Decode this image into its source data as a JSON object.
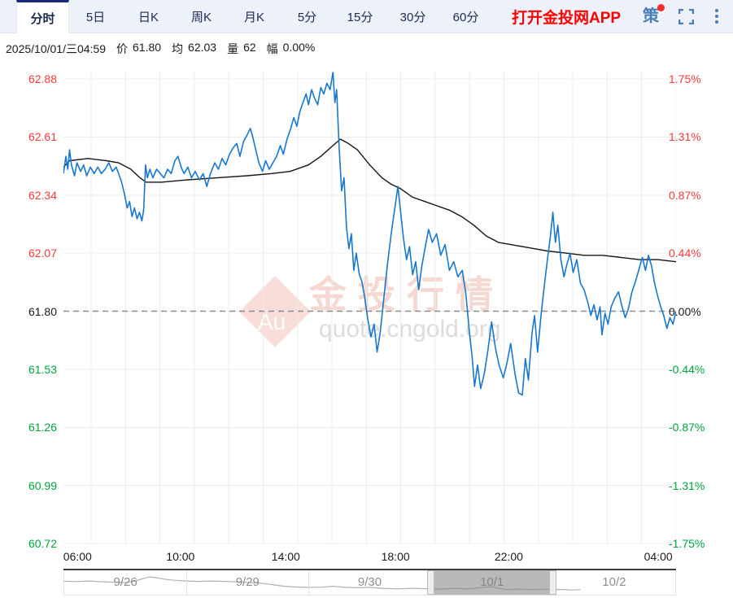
{
  "tab_bar": {
    "tabs": [
      "分时",
      "5日",
      "日K",
      "周K",
      "月K",
      "5分",
      "15分",
      "30分",
      "60分"
    ],
    "active_tab": "分时",
    "app_link": "打开金投网APP",
    "strategy_icon_char": "策"
  },
  "info_line": {
    "datetime": "2025/10/01/三04:59",
    "price_label": "价",
    "price": "61.80",
    "avg_label": "均",
    "avg": "62.03",
    "volume_label": "量",
    "volume": "62",
    "range_label": "幅",
    "range": "0.00%"
  },
  "watermark": {
    "logo_text": "Au",
    "brand_text": "金投行情",
    "site_text": "quote.cngold.org"
  },
  "colors": {
    "up": "#f83a3a",
    "down": "#00a43e",
    "flat": "#1a1a1a",
    "price_line": "#1778cf",
    "avg_line": "#151515",
    "grid": "#ececec",
    "dashed": "#8c8c8c",
    "app_link": "#fe0000",
    "icon_blue": "#4a7ebb",
    "badge_red": "#f32b2b",
    "watermark_pink": "#f8ddd8",
    "watermark_text": "#f5d8d2",
    "nav_line": "#b0b0b0"
  },
  "chart_data": {
    "type": "line",
    "title": "",
    "x_axis": {
      "labels": [
        "06:00",
        "10:00",
        "14:00",
        "18:00",
        "22:00",
        "04:00"
      ],
      "positions": [
        0.023,
        0.191,
        0.363,
        0.542,
        0.727,
        0.971
      ]
    },
    "y_axis_left": {
      "labels": [
        "62.88",
        "62.61",
        "62.34",
        "62.07",
        "61.80",
        "61.53",
        "61.26",
        "60.99",
        "60.72"
      ],
      "tones": [
        "up",
        "up",
        "up",
        "up",
        "flat",
        "down",
        "down",
        "down",
        "down"
      ]
    },
    "y_axis_right": {
      "labels": [
        "1.75%",
        "1.31%",
        "0.87%",
        "0.44%",
        "0.00%",
        "-0.44%",
        "-0.87%",
        "-1.31%",
        "-1.75%"
      ],
      "tones": [
        "up",
        "up",
        "up",
        "up",
        "flat",
        "down",
        "down",
        "down",
        "down"
      ]
    },
    "y_min": 60.72,
    "y_max": 62.88,
    "prev_close": 61.8,
    "series": [
      {
        "name": "price",
        "color_key": "price_line",
        "points": [
          [
            0.0,
            62.44
          ],
          [
            0.004,
            62.52
          ],
          [
            0.007,
            62.46
          ],
          [
            0.01,
            62.55
          ],
          [
            0.013,
            62.48
          ],
          [
            0.018,
            62.43
          ],
          [
            0.022,
            62.49
          ],
          [
            0.028,
            62.45
          ],
          [
            0.033,
            62.48
          ],
          [
            0.038,
            62.43
          ],
          [
            0.044,
            62.47
          ],
          [
            0.05,
            62.44
          ],
          [
            0.056,
            62.47
          ],
          [
            0.062,
            62.44
          ],
          [
            0.068,
            62.46
          ],
          [
            0.074,
            62.49
          ],
          [
            0.08,
            62.45
          ],
          [
            0.086,
            62.47
          ],
          [
            0.09,
            62.44
          ],
          [
            0.095,
            62.4
          ],
          [
            0.1,
            62.34
          ],
          [
            0.104,
            62.28
          ],
          [
            0.108,
            62.31
          ],
          [
            0.112,
            62.24
          ],
          [
            0.116,
            62.28
          ],
          [
            0.12,
            62.23
          ],
          [
            0.124,
            62.26
          ],
          [
            0.128,
            62.22
          ],
          [
            0.131,
            62.27
          ],
          [
            0.134,
            62.48
          ],
          [
            0.137,
            62.42
          ],
          [
            0.141,
            62.46
          ],
          [
            0.146,
            62.42
          ],
          [
            0.152,
            62.46
          ],
          [
            0.158,
            62.44
          ],
          [
            0.164,
            62.42
          ],
          [
            0.17,
            62.46
          ],
          [
            0.176,
            62.44
          ],
          [
            0.182,
            62.5
          ],
          [
            0.187,
            62.52
          ],
          [
            0.192,
            62.47
          ],
          [
            0.197,
            62.44
          ],
          [
            0.203,
            62.47
          ],
          [
            0.209,
            62.42
          ],
          [
            0.215,
            62.45
          ],
          [
            0.222,
            62.41
          ],
          [
            0.228,
            62.44
          ],
          [
            0.234,
            62.38
          ],
          [
            0.24,
            62.44
          ],
          [
            0.247,
            62.49
          ],
          [
            0.253,
            62.46
          ],
          [
            0.259,
            62.51
          ],
          [
            0.265,
            62.48
          ],
          [
            0.271,
            62.53
          ],
          [
            0.277,
            62.56
          ],
          [
            0.283,
            62.58
          ],
          [
            0.288,
            62.52
          ],
          [
            0.294,
            62.59
          ],
          [
            0.3,
            62.62
          ],
          [
            0.305,
            62.65
          ],
          [
            0.309,
            62.61
          ],
          [
            0.314,
            62.55
          ],
          [
            0.319,
            62.49
          ],
          [
            0.325,
            62.45
          ],
          [
            0.33,
            62.5
          ],
          [
            0.336,
            62.46
          ],
          [
            0.342,
            62.49
          ],
          [
            0.348,
            62.52
          ],
          [
            0.354,
            62.57
          ],
          [
            0.359,
            62.53
          ],
          [
            0.365,
            62.6
          ],
          [
            0.371,
            62.65
          ],
          [
            0.376,
            62.7
          ],
          [
            0.381,
            62.66
          ],
          [
            0.386,
            62.73
          ],
          [
            0.391,
            62.77
          ],
          [
            0.396,
            62.81
          ],
          [
            0.4,
            62.76
          ],
          [
            0.405,
            62.83
          ],
          [
            0.41,
            62.79
          ],
          [
            0.415,
            62.76
          ],
          [
            0.42,
            62.84
          ],
          [
            0.425,
            62.81
          ],
          [
            0.43,
            62.86
          ],
          [
            0.435,
            62.83
          ],
          [
            0.44,
            62.91
          ],
          [
            0.443,
            62.77
          ],
          [
            0.446,
            62.83
          ],
          [
            0.45,
            62.56
          ],
          [
            0.454,
            62.36
          ],
          [
            0.458,
            62.42
          ],
          [
            0.462,
            62.19
          ],
          [
            0.466,
            62.09
          ],
          [
            0.47,
            62.16
          ],
          [
            0.474,
            61.99
          ],
          [
            0.478,
            62.07
          ],
          [
            0.483,
            61.97
          ],
          [
            0.487,
            61.94
          ],
          [
            0.492,
            61.86
          ],
          [
            0.497,
            61.76
          ],
          [
            0.502,
            61.68
          ],
          [
            0.507,
            61.74
          ],
          [
            0.512,
            61.61
          ],
          [
            0.517,
            61.7
          ],
          [
            0.523,
            61.86
          ],
          [
            0.529,
            62.02
          ],
          [
            0.535,
            62.16
          ],
          [
            0.54,
            62.26
          ],
          [
            0.546,
            62.38
          ],
          [
            0.55,
            62.27
          ],
          [
            0.555,
            62.14
          ],
          [
            0.56,
            62.04
          ],
          [
            0.565,
            62.1
          ],
          [
            0.57,
            61.97
          ],
          [
            0.575,
            62.03
          ],
          [
            0.58,
            61.9
          ],
          [
            0.585,
            62.01
          ],
          [
            0.59,
            62.09
          ],
          [
            0.596,
            62.18
          ],
          [
            0.602,
            62.12
          ],
          [
            0.609,
            62.16
          ],
          [
            0.616,
            62.06
          ],
          [
            0.623,
            62.11
          ],
          [
            0.63,
            61.99
          ],
          [
            0.637,
            62.03
          ],
          [
            0.644,
            61.96
          ],
          [
            0.651,
            61.99
          ],
          [
            0.657,
            61.88
          ],
          [
            0.662,
            61.72
          ],
          [
            0.667,
            61.59
          ],
          [
            0.671,
            61.45
          ],
          [
            0.676,
            61.55
          ],
          [
            0.681,
            61.44
          ],
          [
            0.687,
            61.51
          ],
          [
            0.693,
            61.62
          ],
          [
            0.699,
            61.75
          ],
          [
            0.705,
            61.63
          ],
          [
            0.711,
            61.55
          ],
          [
            0.718,
            61.49
          ],
          [
            0.724,
            61.56
          ],
          [
            0.73,
            61.65
          ],
          [
            0.737,
            61.51
          ],
          [
            0.743,
            61.42
          ],
          [
            0.749,
            61.41
          ],
          [
            0.754,
            61.58
          ],
          [
            0.759,
            61.48
          ],
          [
            0.765,
            61.7
          ],
          [
            0.769,
            61.78
          ],
          [
            0.774,
            61.61
          ],
          [
            0.78,
            61.79
          ],
          [
            0.785,
            61.92
          ],
          [
            0.79,
            62.04
          ],
          [
            0.795,
            62.15
          ],
          [
            0.799,
            62.26
          ],
          [
            0.803,
            62.12
          ],
          [
            0.807,
            62.2
          ],
          [
            0.812,
            62.04
          ],
          [
            0.817,
            61.96
          ],
          [
            0.822,
            62.02
          ],
          [
            0.827,
            62.07
          ],
          [
            0.832,
            61.98
          ],
          [
            0.838,
            62.04
          ],
          [
            0.844,
            61.93
          ],
          [
            0.85,
            61.9
          ],
          [
            0.856,
            61.84
          ],
          [
            0.861,
            61.78
          ],
          [
            0.866,
            61.83
          ],
          [
            0.871,
            61.76
          ],
          [
            0.876,
            61.82
          ],
          [
            0.879,
            61.69
          ],
          [
            0.884,
            61.79
          ],
          [
            0.889,
            61.74
          ],
          [
            0.894,
            61.82
          ],
          [
            0.9,
            61.86
          ],
          [
            0.906,
            61.89
          ],
          [
            0.912,
            61.82
          ],
          [
            0.917,
            61.77
          ],
          [
            0.922,
            61.81
          ],
          [
            0.928,
            61.89
          ],
          [
            0.934,
            61.94
          ],
          [
            0.94,
            62.0
          ],
          [
            0.945,
            62.05
          ],
          [
            0.95,
            61.99
          ],
          [
            0.955,
            62.06
          ],
          [
            0.96,
            62.01
          ],
          [
            0.965,
            61.93
          ],
          [
            0.97,
            61.87
          ],
          [
            0.975,
            61.82
          ],
          [
            0.98,
            61.78
          ],
          [
            0.985,
            61.72
          ],
          [
            0.99,
            61.77
          ],
          [
            0.995,
            61.74
          ],
          [
            1.0,
            61.8
          ]
        ]
      },
      {
        "name": "average",
        "color_key": "avg_line",
        "points": [
          [
            0.0,
            62.47
          ],
          [
            0.01,
            62.5
          ],
          [
            0.04,
            62.51
          ],
          [
            0.07,
            62.5
          ],
          [
            0.09,
            62.49
          ],
          [
            0.11,
            62.46
          ],
          [
            0.125,
            62.42
          ],
          [
            0.135,
            62.4
          ],
          [
            0.16,
            62.4
          ],
          [
            0.2,
            62.41
          ],
          [
            0.25,
            62.42
          ],
          [
            0.3,
            62.43
          ],
          [
            0.34,
            62.44
          ],
          [
            0.37,
            62.45
          ],
          [
            0.4,
            62.48
          ],
          [
            0.42,
            62.52
          ],
          [
            0.44,
            62.57
          ],
          [
            0.452,
            62.6
          ],
          [
            0.465,
            62.58
          ],
          [
            0.48,
            62.55
          ],
          [
            0.5,
            62.48
          ],
          [
            0.52,
            62.42
          ],
          [
            0.535,
            62.39
          ],
          [
            0.55,
            62.37
          ],
          [
            0.57,
            62.33
          ],
          [
            0.59,
            62.31
          ],
          [
            0.61,
            62.29
          ],
          [
            0.63,
            62.27
          ],
          [
            0.65,
            62.24
          ],
          [
            0.67,
            62.2
          ],
          [
            0.69,
            62.15
          ],
          [
            0.71,
            62.12
          ],
          [
            0.73,
            62.11
          ],
          [
            0.75,
            62.1
          ],
          [
            0.77,
            62.09
          ],
          [
            0.79,
            62.08
          ],
          [
            0.82,
            62.07
          ],
          [
            0.85,
            62.06
          ],
          [
            0.88,
            62.06
          ],
          [
            0.91,
            62.05
          ],
          [
            0.94,
            62.04
          ],
          [
            0.97,
            62.04
          ],
          [
            1.0,
            62.03
          ]
        ]
      }
    ],
    "navigator": {
      "dates": [
        "9/26",
        "9/29",
        "9/30",
        "10/1",
        "10/2"
      ],
      "selected_date": "10/1",
      "selected_range": [
        0.6,
        0.8
      ],
      "mini_series": [
        [
          0.0,
          0.45
        ],
        [
          0.02,
          0.47
        ],
        [
          0.04,
          0.44
        ],
        [
          0.06,
          0.48
        ],
        [
          0.08,
          0.5
        ],
        [
          0.1,
          0.52
        ],
        [
          0.115,
          0.45
        ],
        [
          0.13,
          0.3
        ],
        [
          0.14,
          0.22
        ],
        [
          0.15,
          0.26
        ],
        [
          0.163,
          0.34
        ],
        [
          0.18,
          0.4
        ],
        [
          0.199,
          0.44
        ],
        [
          0.22,
          0.46
        ],
        [
          0.245,
          0.44
        ],
        [
          0.27,
          0.47
        ],
        [
          0.295,
          0.5
        ],
        [
          0.32,
          0.55
        ],
        [
          0.34,
          0.63
        ],
        [
          0.36,
          0.72
        ],
        [
          0.38,
          0.76
        ],
        [
          0.399,
          0.78
        ],
        [
          0.42,
          0.77
        ],
        [
          0.44,
          0.72
        ],
        [
          0.46,
          0.78
        ],
        [
          0.48,
          0.8
        ],
        [
          0.5,
          0.78
        ],
        [
          0.52,
          0.83
        ],
        [
          0.545,
          0.86
        ],
        [
          0.57,
          0.83
        ],
        [
          0.599,
          0.86
        ],
        [
          0.62,
          0.87
        ],
        [
          0.64,
          0.83
        ],
        [
          0.66,
          0.86
        ],
        [
          0.68,
          0.8
        ],
        [
          0.7,
          0.74
        ],
        [
          0.712,
          0.84
        ],
        [
          0.725,
          0.9
        ],
        [
          0.745,
          0.87
        ],
        [
          0.765,
          0.9
        ],
        [
          0.785,
          0.88
        ],
        [
          0.799,
          0.9
        ],
        [
          0.815,
          0.89
        ],
        [
          0.83,
          0.92
        ],
        [
          0.845,
          0.9
        ]
      ]
    }
  }
}
